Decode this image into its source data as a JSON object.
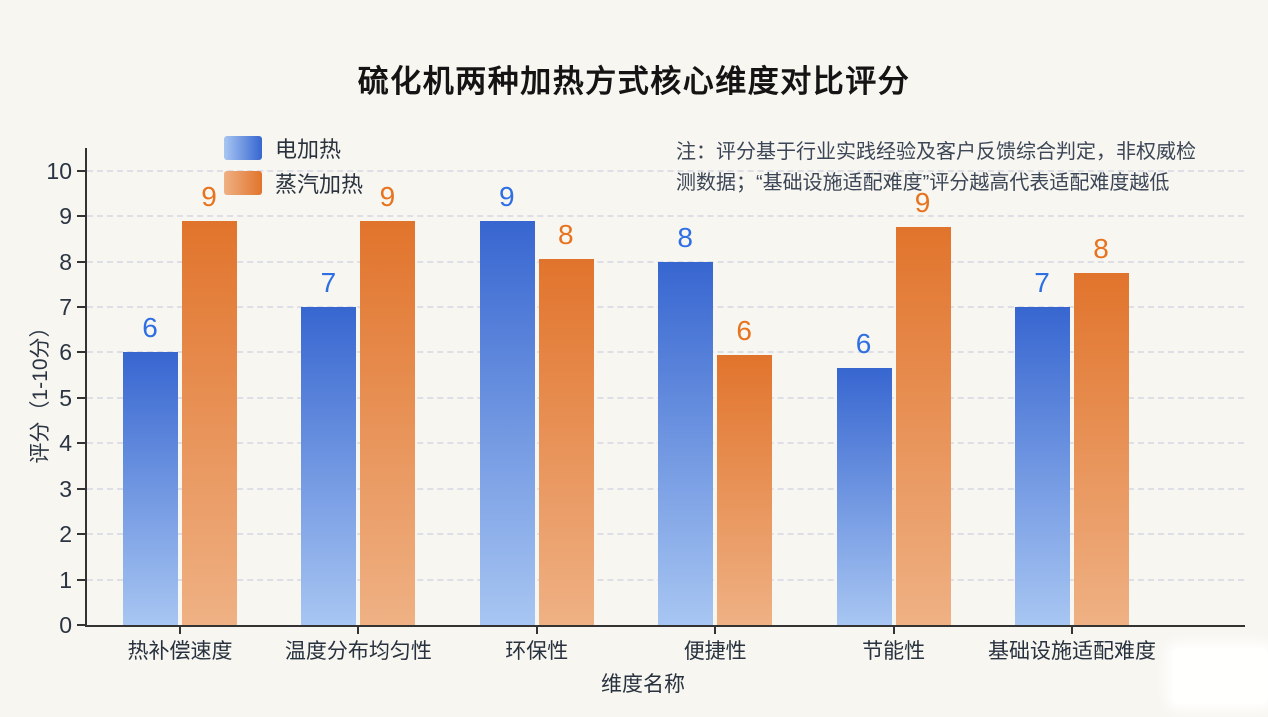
{
  "note": {
    "lines": [
      "注：评分基于行业实践经验及客户反馈综合判定，非权威检",
      "测数据；“基础设施适配难度”评分越高代表适配难度越低"
    ]
  },
  "chart_data": {
    "type": "bar",
    "title": "硫化机两种加热方式核心维度对比评分",
    "categories": [
      "热补偿速度",
      "温度分布均匀性",
      "环保性",
      "便捷性",
      "节能性",
      "基础设施适配难度"
    ],
    "series": [
      {
        "name": "电加热",
        "values": [
          6,
          7,
          9,
          8,
          6,
          7
        ],
        "render_heights": [
          6.0,
          7.0,
          8.9,
          8.0,
          5.65,
          7.0
        ],
        "color_top": "#3766d0",
        "color_bottom": "#a8c6f2",
        "label_color": "#2f6fe4"
      },
      {
        "name": "蒸汽加热",
        "values": [
          9,
          9,
          8,
          6,
          9,
          8
        ],
        "render_heights": [
          8.9,
          8.9,
          8.05,
          5.95,
          8.75,
          7.75
        ],
        "color_top": "#e1742c",
        "color_bottom": "#efb184",
        "label_color": "#e7731e"
      }
    ],
    "xlabel": "维度名称",
    "ylabel": "评分（1-10分）",
    "ylim": [
      0,
      10
    ],
    "yticks": [
      0,
      1,
      2,
      3,
      4,
      5,
      6,
      7,
      8,
      9,
      10
    ],
    "grid": "horizontal-dashed",
    "legend_position": "top-left",
    "colors": {
      "background": "#f7f6f1",
      "axis": "#333333",
      "gridline": "#dedee6",
      "tick_text": "#2b3442",
      "title_text": "#141414",
      "note_text": "#3c4656"
    }
  }
}
